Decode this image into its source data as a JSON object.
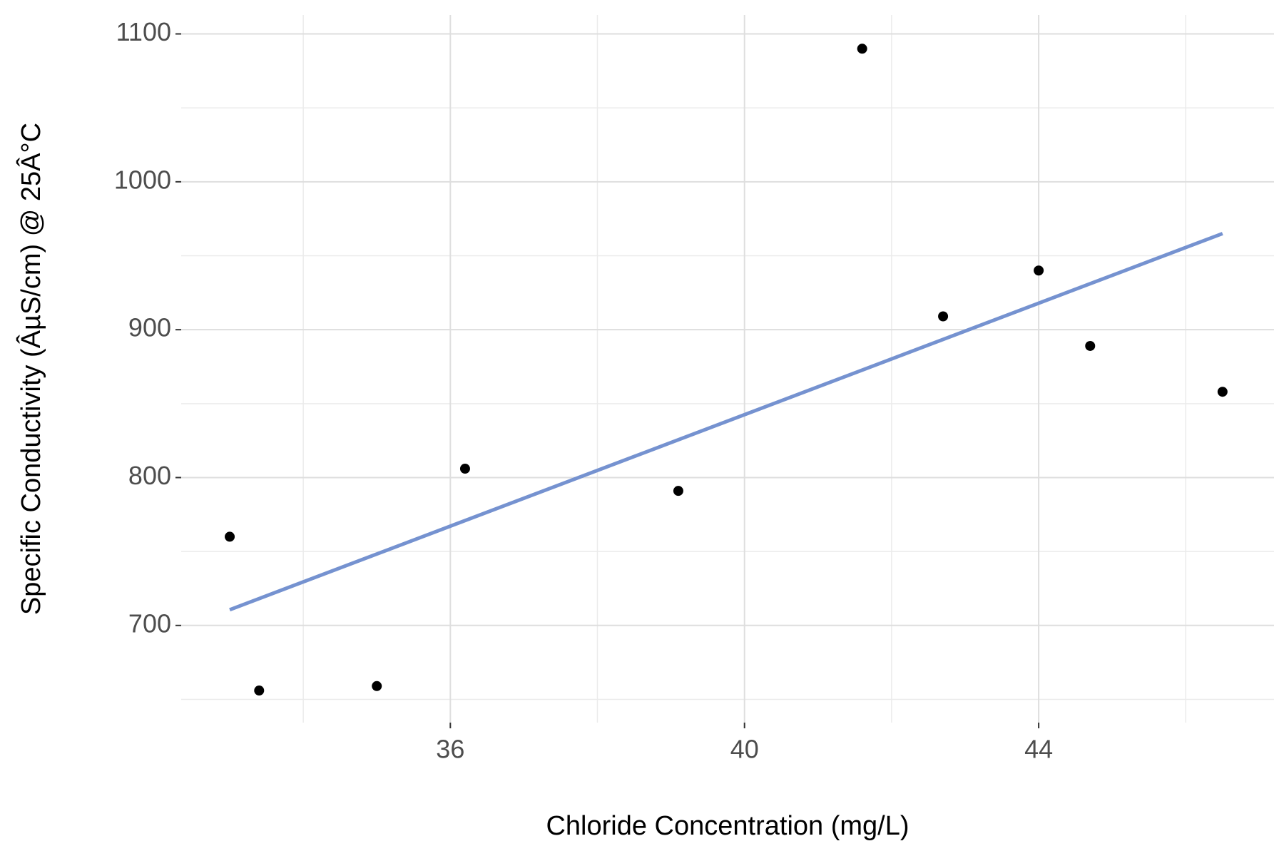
{
  "chart_data": {
    "type": "scatter",
    "xlabel": "Chloride Concentration (mg/L)",
    "ylabel": "Specific Conductivity (ÂµS/cm) @ 25Â°C",
    "xlim": [
      32.34,
      47.2
    ],
    "ylim": [
      634.3,
      1112.8
    ],
    "xticks": [
      36,
      40,
      44
    ],
    "yticks": [
      700,
      800,
      900,
      1000,
      1100
    ],
    "xminor": [
      34,
      38,
      42,
      46
    ],
    "yminor": [
      650,
      750,
      850,
      950,
      1050
    ],
    "grid": true,
    "series": [
      {
        "color": "#000000",
        "x": [
          33.0,
          33.4,
          35.0,
          36.2,
          39.1,
          41.6,
          42.7,
          44.0,
          44.7,
          46.5
        ],
        "values": [
          760,
          656,
          659,
          806,
          791,
          1090,
          909,
          940,
          889,
          858
        ]
      }
    ],
    "fit": {
      "color": "#7592d0",
      "x": [
        33.0,
        46.5
      ],
      "values": [
        710.6,
        965
      ]
    }
  }
}
